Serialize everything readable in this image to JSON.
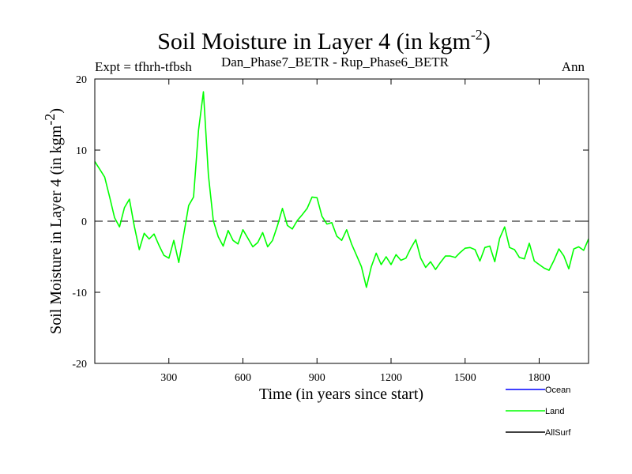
{
  "chart_data": {
    "type": "line",
    "title_main": "Soil Moisture in Layer 4 (in kgm",
    "title_sup": "-2",
    "title_close": ")",
    "expt_label": "Expt = tfhrh-tfbsh",
    "comparison_label": "Dan_Phase7_BETR - Rup_Phase6_BETR",
    "period_label": "Ann",
    "xlabel": "Time (in years since start)",
    "ylabel_main": "Soil Moisture in Layer 4 (in kgm",
    "ylabel_sup": "-2",
    "ylabel_close": ")",
    "xlim": [
      0,
      2000
    ],
    "ylim": [
      -20,
      20
    ],
    "x_ticks": [
      300,
      600,
      900,
      1200,
      1500,
      1800
    ],
    "y_ticks": [
      20,
      10,
      0,
      -10,
      -20
    ],
    "reference_line_y": 0,
    "legend": [
      {
        "name": "Ocean",
        "color": "#0000ff"
      },
      {
        "name": "Land",
        "color": "#00ff00"
      },
      {
        "name": "AllSurf",
        "color": "#000000"
      }
    ],
    "series": [
      {
        "name": "Land",
        "color": "#00ff00",
        "x_step": 20,
        "values": [
          8.4,
          7.3,
          6.2,
          3.4,
          0.5,
          -0.8,
          1.9,
          3.1,
          -0.7,
          -4.0,
          -1.7,
          -2.5,
          -1.8,
          -3.4,
          -4.8,
          -5.2,
          -2.7,
          -5.8,
          -1.9,
          2.2,
          3.4,
          12.8,
          18.2,
          6.5,
          0.1,
          -2.2,
          -3.5,
          -1.3,
          -2.7,
          -3.2,
          -1.2,
          -2.4,
          -3.6,
          -3.0,
          -1.6,
          -3.6,
          -2.7,
          -0.6,
          1.8,
          -0.6,
          -1.1,
          0.1,
          0.9,
          1.8,
          3.4,
          3.3,
          0.7,
          -0.4,
          -0.2,
          -2.1,
          -2.7,
          -1.2,
          -3.2,
          -4.8,
          -6.4,
          -9.3,
          -6.4,
          -4.5,
          -6.1,
          -5.0,
          -6.1,
          -4.7,
          -5.5,
          -5.2,
          -3.8,
          -2.6,
          -5.2,
          -6.5,
          -5.7,
          -6.8,
          -5.8,
          -4.9,
          -4.9,
          -5.1,
          -4.4,
          -3.8,
          -3.7,
          -4.0,
          -5.6,
          -3.7,
          -3.5,
          -5.7,
          -2.4,
          -0.8,
          -3.7,
          -4.0,
          -5.1,
          -5.3,
          -3.1,
          -5.6,
          -6.1,
          -6.6,
          -6.9,
          -5.5,
          -3.9,
          -4.9,
          -6.7,
          -3.9,
          -3.6,
          -4.1,
          -2.5
        ]
      }
    ]
  }
}
